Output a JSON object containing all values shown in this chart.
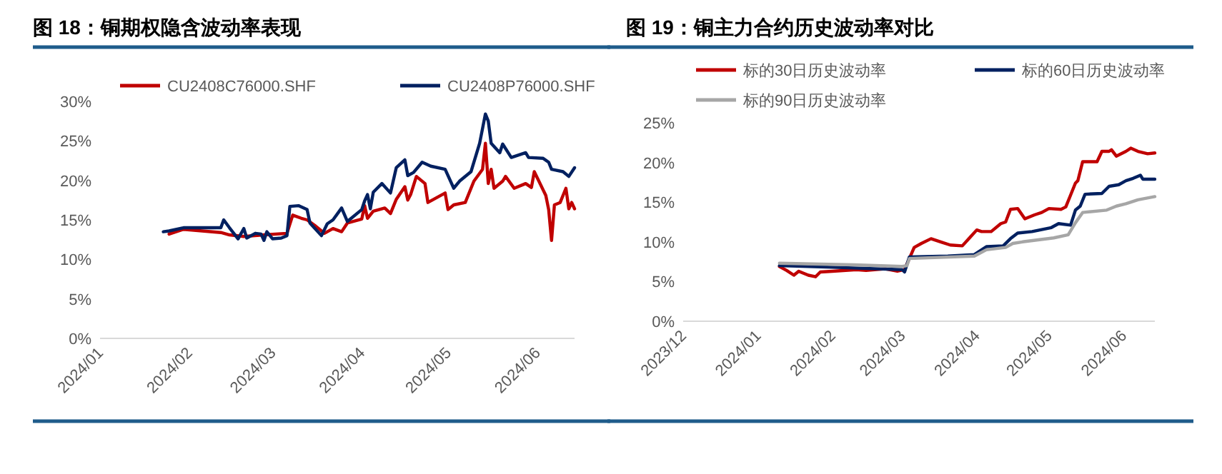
{
  "chart_data": [
    {
      "type": "line",
      "title": "图 18：铜期权隐含波动率表现",
      "legend": "top",
      "xlim": [
        "2024-01-01",
        "2024-06-14"
      ],
      "xticks": [
        {
          "value": "2024-01",
          "label": "2024/01"
        },
        {
          "value": "2024-02",
          "label": "2024/02"
        },
        {
          "value": "2024-03",
          "label": "2024/03"
        },
        {
          "value": "2024-04",
          "label": "2024/04"
        },
        {
          "value": "2024-05",
          "label": "2024/05"
        },
        {
          "value": "2024-06",
          "label": "2024/06"
        }
      ],
      "ylim": [
        0,
        30
      ],
      "yticks": [
        {
          "value": 0,
          "label": "0%"
        },
        {
          "value": 5,
          "label": "5%"
        },
        {
          "value": 10,
          "label": "10%"
        },
        {
          "value": 15,
          "label": "15%"
        },
        {
          "value": 20,
          "label": "20%"
        },
        {
          "value": 25,
          "label": "25%"
        },
        {
          "value": 30,
          "label": "30%"
        }
      ],
      "series": [
        {
          "name": "CU2408C76000.SHF",
          "color": "#c00000",
          "x": [
            "2024-01-25",
            "2024-01-30",
            "2024-02-12",
            "2024-02-15",
            "2024-02-20",
            "2024-02-27",
            "2024-03-06",
            "2024-03-08",
            "2024-03-11",
            "2024-03-13",
            "2024-03-16",
            "2024-03-19",
            "2024-03-22",
            "2024-03-25",
            "2024-03-27",
            "2024-04-01",
            "2024-04-02",
            "2024-04-03",
            "2024-04-05",
            "2024-04-09",
            "2024-04-11",
            "2024-04-13",
            "2024-04-16",
            "2024-04-17",
            "2024-04-18",
            "2024-04-20",
            "2024-04-23",
            "2024-04-24",
            "2024-04-30",
            "2024-05-01",
            "2024-05-03",
            "2024-05-07",
            "2024-05-10",
            "2024-05-13",
            "2024-05-14",
            "2024-05-15",
            "2024-05-16",
            "2024-05-17",
            "2024-05-20",
            "2024-05-21",
            "2024-05-24",
            "2024-05-28",
            "2024-05-30",
            "2024-05-31",
            "2024-06-04",
            "2024-06-05",
            "2024-06-06",
            "2024-06-07",
            "2024-06-09",
            "2024-06-11",
            "2024-06-12",
            "2024-06-13",
            "2024-06-14"
          ],
          "values": [
            13.2,
            13.8,
            13.4,
            13.1,
            12.9,
            13.1,
            13.3,
            15.6,
            15.2,
            15.0,
            14.2,
            13.3,
            13.9,
            13.5,
            14.6,
            15.1,
            16.8,
            15.2,
            16.1,
            16.5,
            15.8,
            17.6,
            19.2,
            17.5,
            18.2,
            20.5,
            19.6,
            17.2,
            18.4,
            16.3,
            16.9,
            17.2,
            19.9,
            21.4,
            24.7,
            19.6,
            21.4,
            19.0,
            19.9,
            20.5,
            19.0,
            19.6,
            19.1,
            21.1,
            18.1,
            16.3,
            12.4,
            16.9,
            17.2,
            19.0,
            16.4,
            17.2,
            16.4
          ]
        },
        {
          "name": "CU2408P76000.SHF",
          "color": "#002060",
          "x": [
            "2024-01-23",
            "2024-01-25",
            "2024-01-30",
            "2024-02-02",
            "2024-02-12",
            "2024-02-13",
            "2024-02-15",
            "2024-02-18",
            "2024-02-20",
            "2024-02-21",
            "2024-02-24",
            "2024-02-26",
            "2024-02-27",
            "2024-02-28",
            "2024-03-01",
            "2024-03-04",
            "2024-03-06",
            "2024-03-07",
            "2024-03-10",
            "2024-03-13",
            "2024-03-14",
            "2024-03-18",
            "2024-03-20",
            "2024-03-22",
            "2024-03-25",
            "2024-03-27",
            "2024-04-01",
            "2024-04-02",
            "2024-04-03",
            "2024-04-04",
            "2024-04-05",
            "2024-04-08",
            "2024-04-11",
            "2024-04-13",
            "2024-04-16",
            "2024-04-17",
            "2024-04-19",
            "2024-04-22",
            "2024-04-25",
            "2024-04-30",
            "2024-05-03",
            "2024-05-05",
            "2024-05-09",
            "2024-05-12",
            "2024-05-14",
            "2024-05-15",
            "2024-05-16",
            "2024-05-19",
            "2024-05-20",
            "2024-05-23",
            "2024-05-28",
            "2024-05-29",
            "2024-06-03",
            "2024-06-05",
            "2024-06-06",
            "2024-06-10",
            "2024-06-12",
            "2024-06-14"
          ],
          "values": [
            13.5,
            13.6,
            14.0,
            14.0,
            14.0,
            15.0,
            14.0,
            12.6,
            13.9,
            12.7,
            13.3,
            13.2,
            12.4,
            13.5,
            12.6,
            12.7,
            13.0,
            16.7,
            16.8,
            16.3,
            14.6,
            13.0,
            14.5,
            15.0,
            16.5,
            14.8,
            16.3,
            17.4,
            18.2,
            16.4,
            18.5,
            19.6,
            18.4,
            21.6,
            22.6,
            20.6,
            21.0,
            22.3,
            21.8,
            21.4,
            19.0,
            19.9,
            21.1,
            24.7,
            28.4,
            27.5,
            24.7,
            23.5,
            24.6,
            22.9,
            23.5,
            22.9,
            22.8,
            22.3,
            21.4,
            21.1,
            20.5,
            21.6
          ]
        }
      ]
    },
    {
      "type": "line",
      "title": "图 19：铜主力合约历史波动率对比",
      "legend": "top",
      "xlim": [
        "2023-12-01",
        "2024-06-14"
      ],
      "xticks": [
        {
          "value": "2023-12",
          "label": "2023/12"
        },
        {
          "value": "2024-01",
          "label": "2024/01"
        },
        {
          "value": "2024-02",
          "label": "2024/02"
        },
        {
          "value": "2024-03",
          "label": "2024/03"
        },
        {
          "value": "2024-04",
          "label": "2024/04"
        },
        {
          "value": "2024-05",
          "label": "2024/05"
        },
        {
          "value": "2024-06",
          "label": "2024/06"
        }
      ],
      "ylim": [
        0,
        25
      ],
      "yticks": [
        {
          "value": 0,
          "label": "0%"
        },
        {
          "value": 5,
          "label": "5%"
        },
        {
          "value": 10,
          "label": "10%"
        },
        {
          "value": 15,
          "label": "15%"
        },
        {
          "value": 20,
          "label": "20%"
        },
        {
          "value": 25,
          "label": "25%"
        }
      ],
      "series": [
        {
          "name": "标的30日历史波动率",
          "color": "#c00000",
          "x": [
            "2024-01-10",
            "2024-01-13",
            "2024-01-16",
            "2024-01-18",
            "2024-01-22",
            "2024-01-25",
            "2024-01-27",
            "2024-02-01",
            "2024-02-11",
            "2024-02-15",
            "2024-02-23",
            "2024-02-28",
            "2024-03-02",
            "2024-03-06",
            "2024-03-09",
            "2024-03-13",
            "2024-03-17",
            "2024-03-21",
            "2024-03-26",
            "2024-03-29",
            "2024-04-01",
            "2024-04-03",
            "2024-04-07",
            "2024-04-11",
            "2024-04-13",
            "2024-04-15",
            "2024-04-18",
            "2024-04-21",
            "2024-04-25",
            "2024-04-28",
            "2024-05-01",
            "2024-05-06",
            "2024-05-08",
            "2024-05-10",
            "2024-05-12",
            "2024-05-13",
            "2024-05-15",
            "2024-05-21",
            "2024-05-23",
            "2024-05-26",
            "2024-05-27",
            "2024-05-29",
            "2024-06-02",
            "2024-06-04",
            "2024-06-07",
            "2024-06-11",
            "2024-06-14"
          ],
          "values": [
            6.9,
            6.4,
            5.8,
            6.3,
            5.8,
            5.6,
            6.2,
            6.3,
            6.5,
            6.4,
            6.6,
            6.3,
            6.5,
            9.3,
            9.8,
            10.4,
            10.0,
            9.6,
            9.5,
            10.5,
            11.5,
            11.3,
            11.3,
            12.3,
            12.5,
            14.1,
            14.2,
            12.9,
            13.4,
            13.7,
            14.2,
            14.1,
            14.4,
            15.9,
            17.4,
            17.7,
            20.1,
            20.1,
            21.4,
            21.4,
            21.6,
            20.8,
            21.4,
            21.8,
            21.4,
            21.1,
            21.2
          ]
        },
        {
          "name": "标的60日历史波动率",
          "color": "#002060",
          "x": [
            "2024-01-10",
            "2024-02-01",
            "2024-03-01",
            "2024-03-02",
            "2024-03-04",
            "2024-03-20",
            "2024-03-31",
            "2024-04-05",
            "2024-04-12",
            "2024-04-15",
            "2024-04-18",
            "2024-04-24",
            "2024-05-02",
            "2024-05-05",
            "2024-05-10",
            "2024-05-12",
            "2024-05-14",
            "2024-05-16",
            "2024-05-23",
            "2024-05-26",
            "2024-05-30",
            "2024-06-02",
            "2024-06-05",
            "2024-06-08",
            "2024-06-09",
            "2024-06-14"
          ],
          "values": [
            7.0,
            6.8,
            6.5,
            6.2,
            8.1,
            8.2,
            8.4,
            9.4,
            9.5,
            10.4,
            11.1,
            11.3,
            11.8,
            12.3,
            12.1,
            14.0,
            14.5,
            16.0,
            16.1,
            17.0,
            17.2,
            17.7,
            18.0,
            18.4,
            17.9,
            17.9
          ]
        },
        {
          "name": "标的90日历史波动率",
          "color": "#a6a6a6",
          "x": [
            "2024-01-10",
            "2024-02-10",
            "2024-03-01",
            "2024-03-03",
            "2024-03-04",
            "2024-03-31",
            "2024-04-05",
            "2024-04-13",
            "2024-04-16",
            "2024-04-20",
            "2024-05-03",
            "2024-05-09",
            "2024-05-12",
            "2024-05-15",
            "2024-05-25",
            "2024-05-29",
            "2024-06-02",
            "2024-06-07",
            "2024-06-14"
          ],
          "values": [
            7.3,
            7.1,
            6.9,
            7.0,
            7.9,
            8.2,
            9.0,
            9.3,
            9.8,
            10.0,
            10.5,
            10.9,
            12.4,
            13.7,
            14.0,
            14.5,
            14.8,
            15.3,
            15.7
          ]
        }
      ]
    }
  ]
}
